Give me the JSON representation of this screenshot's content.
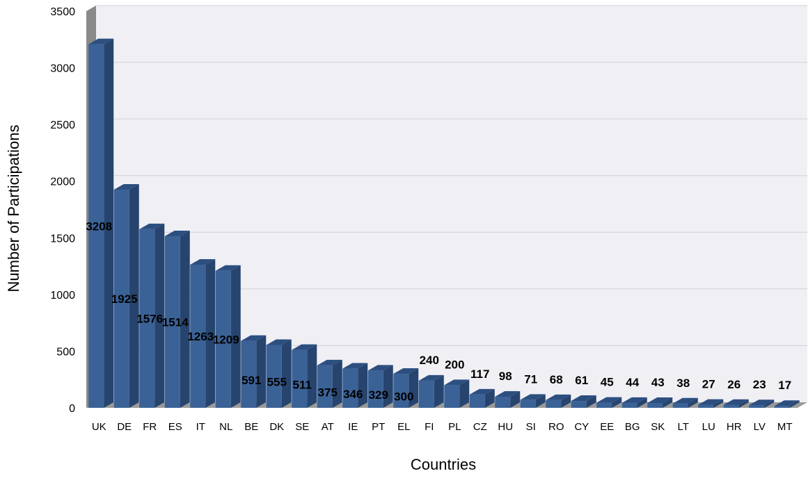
{
  "chart_data": {
    "type": "bar",
    "title": "",
    "xlabel": "Countries",
    "ylabel": "Number of Participations",
    "ylim": [
      0,
      3500
    ],
    "yticks": [
      0,
      500,
      1000,
      1500,
      2000,
      2500,
      3000,
      3500
    ],
    "grid": true,
    "legend": "none",
    "style": "3d",
    "categories": [
      "UK",
      "DE",
      "FR",
      "ES",
      "IT",
      "NL",
      "BE",
      "DK",
      "SE",
      "AT",
      "IE",
      "PT",
      "EL",
      "FI",
      "PL",
      "CZ",
      "HU",
      "SI",
      "RO",
      "CY",
      "EE",
      "BG",
      "SK",
      "LT",
      "LU",
      "HR",
      "LV",
      "MT"
    ],
    "values": [
      3208,
      1925,
      1576,
      1514,
      1263,
      1209,
      591,
      555,
      511,
      375,
      346,
      329,
      300,
      240,
      200,
      117,
      98,
      71,
      68,
      61,
      45,
      44,
      43,
      38,
      27,
      26,
      23,
      17
    ],
    "colors": {
      "bar_front": "#3a6296",
      "bar_top": "#2d4f80",
      "bar_side": "#26446e",
      "plot_background": "#efeff4",
      "gridline": "#d0d0d8",
      "wall_side": "#8a8a8a",
      "floor": "#9a9a9a"
    }
  }
}
